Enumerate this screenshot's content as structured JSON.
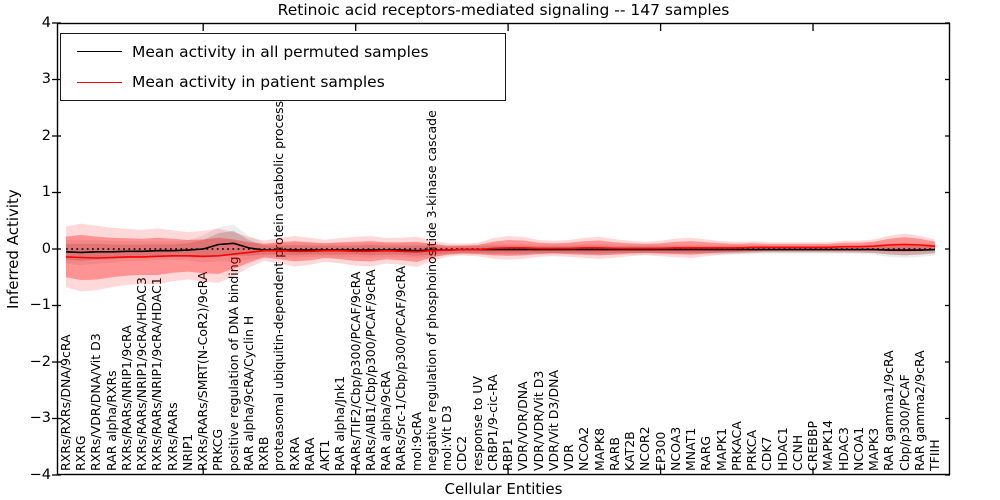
{
  "figure": {
    "title": "Retinoic acid receptors-mediated signaling -- 147 samples"
  },
  "axes": {
    "xlabel": "Cellular Entities",
    "ylabel": "Inferred Activity",
    "ytick_labels": [
      "4",
      "3",
      "2",
      "1",
      "0",
      "−1",
      "−2",
      "−3",
      "−4"
    ]
  },
  "legend": {
    "items": [
      {
        "label": "Mean activity in all permuted samples",
        "color": "#000000"
      },
      {
        "label": "Mean activity in patient samples",
        "color": "#ff0000"
      }
    ]
  },
  "chart_data": {
    "type": "line",
    "title": "Retinoic acid receptors-mediated signaling -- 147 samples",
    "xlabel": "Cellular Entities",
    "ylabel": "Inferred Activity",
    "ylim": [
      -4,
      4
    ],
    "yticks": [
      4,
      3,
      2,
      1,
      0,
      -1,
      -2,
      -3,
      -4
    ],
    "x_major_ticks": [
      10,
      20,
      30,
      40,
      50
    ],
    "grid": false,
    "legend_position": "upper left",
    "zero_line": {
      "style": "dotted",
      "color": "#000000",
      "y": 0
    },
    "outer_band_scale": 1.5,
    "categories": [
      "RXRs/RXRs/DNA/9cRA",
      "RXRG",
      "RXRs/VDR/DNA/Vit D3",
      "RAR alpha/RXRs",
      "RXRs/RARs/NRIP1/9cRA",
      "RXRs/RARs/NRIP1/9cRA/HDAC3",
      "RXRs/RARs/NRIP1/9cRA/HDAC1",
      "RXRs/RARs",
      "NRIP1",
      "RXRs/RARs/SMRT(N-CoR2)/9cRA",
      "PRKCG",
      "positive regulation of DNA binding",
      "RAR alpha/9cRA/Cyclin H",
      "RXRB",
      "proteasomal ubiquitin-dependent protein catabolic process",
      "RXRA",
      "RARA",
      "AKT1",
      "RAR alpha/Jnk1",
      "RARs/TIF2/Cbp/p300/PCAF/9cRA",
      "RARs/AIB1/Cbp/p300/PCAF/9cRA",
      "RAR alpha/9cRA",
      "RARs/Src-1/Cbp/p300/PCAF/9cRA",
      "mol:9cRA",
      "negative regulation of phosphoinositide 3-kinase cascade",
      "mol:Vit D3",
      "CDC2",
      "response to UV",
      "CRBP1/9-cic-RA",
      "RBP1",
      "VDR/VDR/DNA",
      "VDR/VDR/Vit D3",
      "VDR/Vit D3/DNA",
      "VDR",
      "NCOA2",
      "MAPK8",
      "RARB",
      "KAT2B",
      "NCOR2",
      "EP300",
      "NCOA3",
      "MNAT1",
      "RARG",
      "MAPK1",
      "PRKACA",
      "PRKCA",
      "CDK7",
      "HDAC1",
      "CCNH",
      "CREBBP",
      "MAPK14",
      "HDAC3",
      "NCOA1",
      "MAPK3",
      "RAR gamma1/9cRA",
      "Cbp/p300/PCAF",
      "RAR gamma2/9cRA",
      "TFIIH"
    ],
    "series": [
      {
        "name": "Mean activity in all permuted samples",
        "color": "#000000",
        "band_color": "#000000",
        "band_alpha_inner": 0.15,
        "band_alpha_outer": 0.07,
        "values": [
          -0.05,
          -0.06,
          -0.05,
          -0.05,
          -0.04,
          -0.04,
          -0.03,
          -0.03,
          -0.02,
          0.0,
          0.08,
          0.1,
          0.02,
          -0.02,
          -0.02,
          -0.02,
          -0.02,
          -0.02,
          -0.02,
          -0.02,
          -0.02,
          -0.02,
          -0.02,
          -0.03,
          -0.02,
          -0.02,
          -0.01,
          -0.01,
          -0.01,
          -0.01,
          -0.01,
          -0.01,
          -0.01,
          -0.01,
          -0.01,
          -0.01,
          -0.01,
          -0.01,
          -0.01,
          -0.01,
          -0.01,
          -0.01,
          -0.01,
          -0.01,
          -0.01,
          -0.01,
          -0.01,
          -0.01,
          -0.01,
          -0.01,
          -0.01,
          -0.01,
          -0.01,
          -0.01,
          -0.02,
          -0.02,
          -0.02,
          -0.01
        ],
        "band_halfwidth": [
          0.14,
          0.15,
          0.14,
          0.13,
          0.12,
          0.12,
          0.11,
          0.11,
          0.12,
          0.16,
          0.2,
          0.22,
          0.14,
          0.08,
          0.08,
          0.09,
          0.08,
          0.08,
          0.08,
          0.08,
          0.09,
          0.08,
          0.08,
          0.09,
          0.08,
          0.06,
          0.06,
          0.06,
          0.07,
          0.07,
          0.07,
          0.06,
          0.06,
          0.06,
          0.07,
          0.07,
          0.06,
          0.06,
          0.06,
          0.06,
          0.06,
          0.06,
          0.06,
          0.06,
          0.06,
          0.05,
          0.05,
          0.05,
          0.05,
          0.05,
          0.05,
          0.05,
          0.05,
          0.06,
          0.08,
          0.09,
          0.08,
          0.07
        ]
      },
      {
        "name": "Mean activity in patient samples",
        "color": "#ff0000",
        "band_color": "#ff0000",
        "band_alpha_inner": 0.32,
        "band_alpha_outer": 0.15,
        "values": [
          -0.14,
          -0.15,
          -0.16,
          -0.15,
          -0.14,
          -0.14,
          -0.13,
          -0.12,
          -0.12,
          -0.13,
          -0.12,
          -0.09,
          -0.06,
          -0.03,
          -0.03,
          -0.04,
          -0.04,
          -0.03,
          -0.03,
          -0.04,
          -0.04,
          -0.03,
          -0.04,
          -0.05,
          -0.03,
          -0.02,
          -0.01,
          -0.01,
          0.01,
          0.02,
          0.02,
          0.01,
          0.01,
          0.01,
          0.02,
          0.02,
          0.01,
          0.01,
          0.01,
          0.01,
          0.02,
          0.02,
          0.02,
          0.02,
          0.02,
          0.03,
          0.03,
          0.03,
          0.03,
          0.03,
          0.03,
          0.04,
          0.04,
          0.05,
          0.07,
          0.08,
          0.07,
          0.05
        ],
        "band_halfwidth": [
          0.36,
          0.4,
          0.38,
          0.35,
          0.33,
          0.32,
          0.33,
          0.3,
          0.28,
          0.3,
          0.32,
          0.26,
          0.18,
          0.12,
          0.15,
          0.18,
          0.16,
          0.13,
          0.15,
          0.17,
          0.18,
          0.15,
          0.16,
          0.18,
          0.12,
          0.08,
          0.07,
          0.08,
          0.12,
          0.14,
          0.13,
          0.1,
          0.09,
          0.1,
          0.12,
          0.13,
          0.11,
          0.09,
          0.08,
          0.09,
          0.11,
          0.12,
          0.1,
          0.08,
          0.07,
          0.07,
          0.06,
          0.06,
          0.06,
          0.06,
          0.06,
          0.07,
          0.07,
          0.08,
          0.11,
          0.13,
          0.11,
          0.08
        ]
      }
    ]
  }
}
